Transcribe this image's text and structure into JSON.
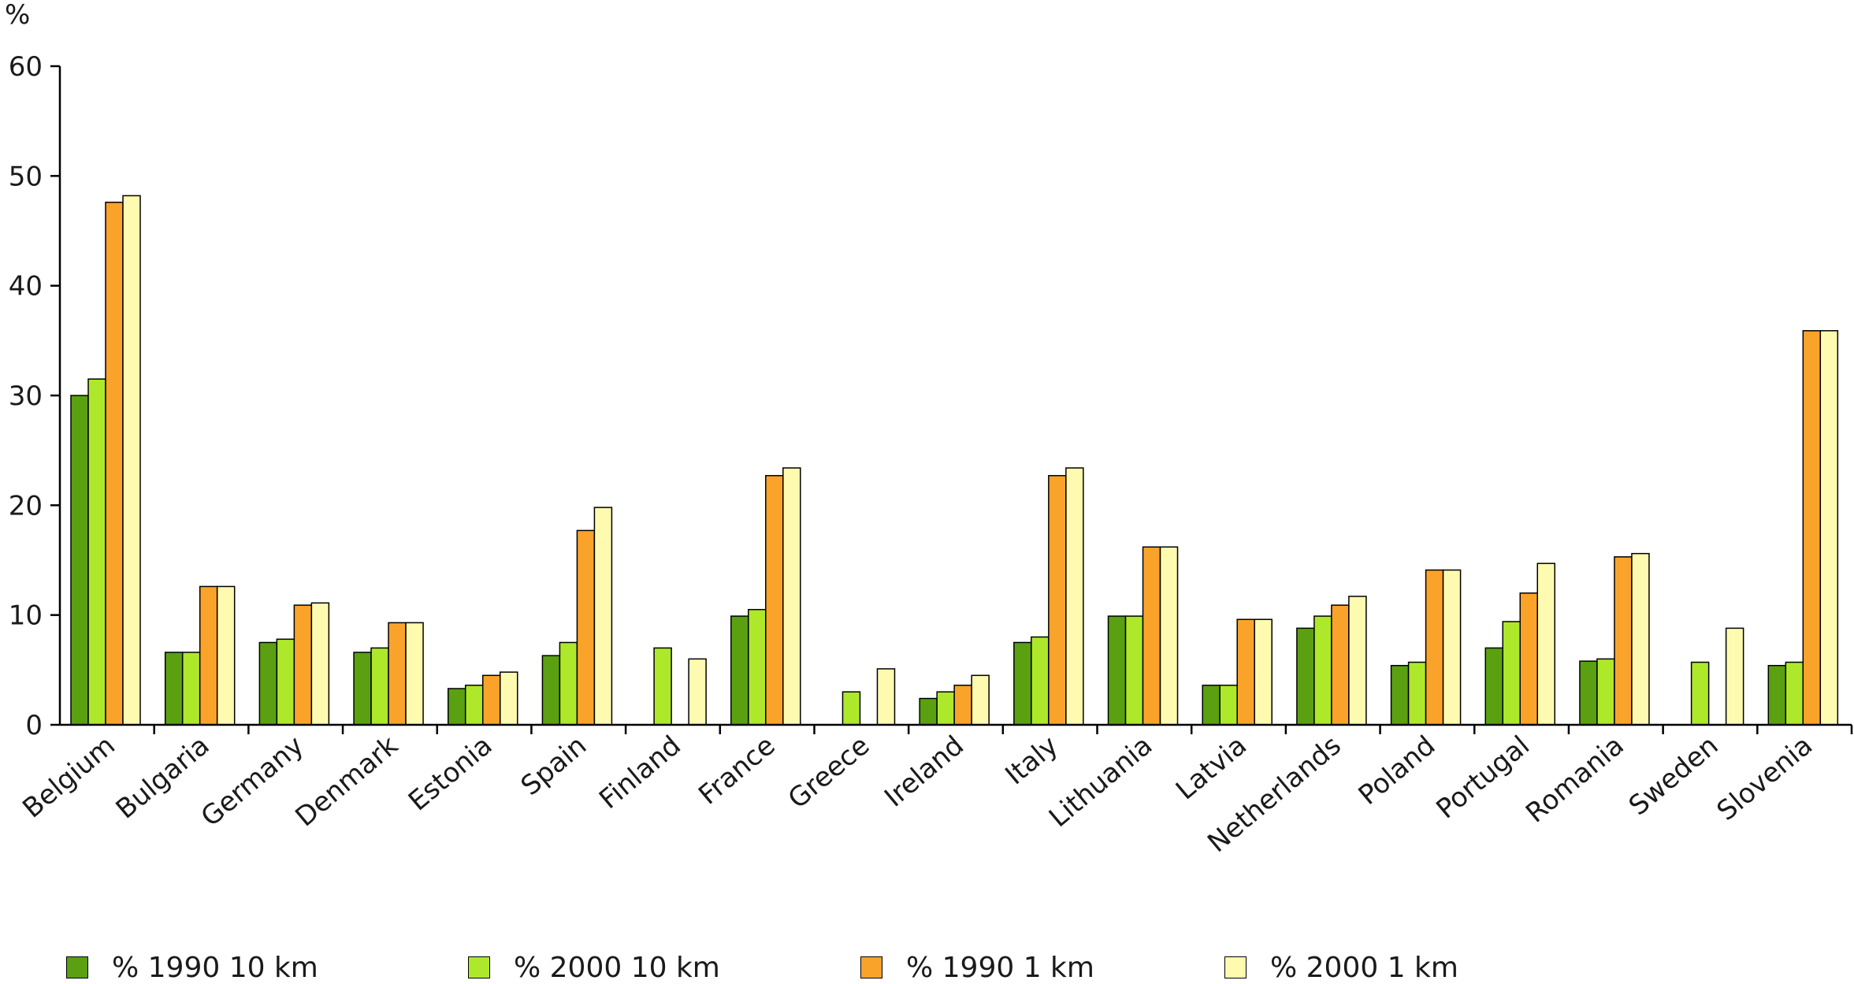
{
  "chart_data": {
    "type": "bar",
    "ylabel": "%",
    "ylim": [
      0,
      60
    ],
    "yticks": [
      0,
      10,
      20,
      30,
      40,
      50,
      60
    ],
    "grid": false,
    "legend_position": "bottom",
    "categories": [
      "Belgium",
      "Bulgaria",
      "Germany",
      "Denmark",
      "Estonia",
      "Spain",
      "Finland",
      "France",
      "Greece",
      "Ireland",
      "Italy",
      "Lithuania",
      "Latvia",
      "Netherlands",
      "Poland",
      "Portugal",
      "Romania",
      "Sweden",
      "Slovenia"
    ],
    "series": [
      {
        "name": "% 1990 10 km",
        "color": "#5aa010",
        "values": [
          30,
          6.6,
          7.5,
          6.6,
          3.3,
          6.3,
          0,
          9.9,
          0,
          2.4,
          7.5,
          9.9,
          3.6,
          8.8,
          5.4,
          7.0,
          5.8,
          0,
          5.4
        ]
      },
      {
        "name": "% 2000 10 km",
        "color": "#aee82a",
        "values": [
          31.5,
          6.6,
          7.8,
          7.0,
          3.6,
          7.5,
          7.0,
          10.5,
          3.0,
          3.0,
          8.0,
          9.9,
          3.6,
          9.9,
          5.7,
          9.4,
          6.0,
          5.7,
          5.7
        ]
      },
      {
        "name": "% 1990 1 km",
        "color": "#faa32a",
        "values": [
          47.6,
          12.6,
          10.9,
          9.3,
          4.5,
          17.7,
          0,
          22.7,
          0,
          3.6,
          22.7,
          16.2,
          9.6,
          10.9,
          14.1,
          12.0,
          15.3,
          0,
          35.9
        ]
      },
      {
        "name": "% 2000 1 km",
        "color": "#fefbb0",
        "values": [
          48.2,
          12.6,
          11.1,
          9.3,
          4.8,
          19.8,
          6.0,
          23.4,
          5.1,
          4.5,
          23.4,
          16.2,
          9.6,
          11.7,
          14.1,
          14.7,
          15.6,
          8.8,
          35.9
        ]
      }
    ]
  }
}
